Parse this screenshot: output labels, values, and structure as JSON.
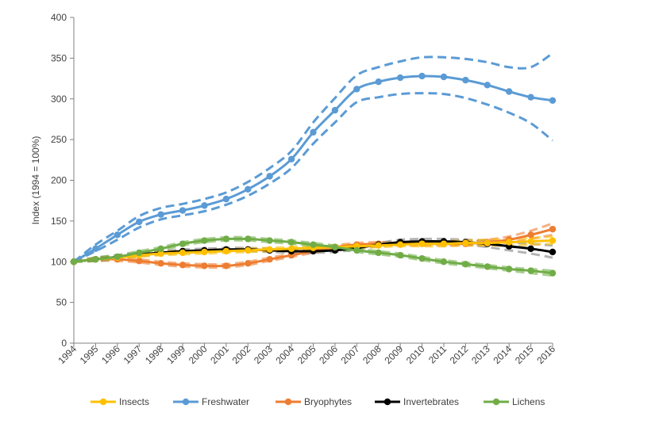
{
  "chart_data": {
    "type": "line",
    "title": "",
    "xlabel": "",
    "ylabel": "Index (1994 = 100%)",
    "ylim": [
      0,
      400
    ],
    "yticks": [
      0,
      50,
      100,
      150,
      200,
      250,
      300,
      350,
      400
    ],
    "x": [
      "1994",
      "1995",
      "1996",
      "1997",
      "1998",
      "1999",
      "2000",
      "2001",
      "2002",
      "2003",
      "2004",
      "2005",
      "2006",
      "2007",
      "2008",
      "2009",
      "2010",
      "2011",
      "2012",
      "2013",
      "2014",
      "2015",
      "2016"
    ],
    "grid": false,
    "legend_position": "bottom",
    "series": [
      {
        "name": "Insects",
        "color": "#FFC000",
        "values": [
          100,
          103,
          105,
          108,
          110,
          111,
          112,
          113,
          114,
          115,
          116,
          117,
          118,
          119,
          120,
          121,
          122,
          122,
          123,
          123,
          124,
          125,
          126
        ],
        "ci_lower": [
          100,
          102,
          104,
          106,
          108,
          109,
          110,
          111,
          112,
          113,
          114,
          115,
          116,
          117,
          118,
          119,
          119,
          119,
          120,
          120,
          120,
          121,
          122
        ],
        "ci_upper": [
          100,
          104,
          107,
          110,
          112,
          113,
          114,
          115,
          116,
          117,
          118,
          119,
          120,
          121,
          122,
          123,
          124,
          125,
          126,
          127,
          128,
          129,
          131
        ]
      },
      {
        "name": "Freshwater",
        "color": "#5B9BD5",
        "values": [
          100,
          116,
          133,
          149,
          158,
          163,
          169,
          177,
          189,
          205,
          226,
          259,
          286,
          312,
          321,
          326,
          328,
          327,
          323,
          317,
          309,
          302,
          298
        ],
        "ci_lower": [
          100,
          113,
          127,
          142,
          152,
          157,
          162,
          170,
          181,
          196,
          215,
          245,
          271,
          296,
          302,
          306,
          307,
          306,
          301,
          293,
          283,
          270,
          249
        ],
        "ci_upper": [
          100,
          121,
          138,
          156,
          166,
          171,
          177,
          185,
          198,
          215,
          236,
          271,
          301,
          329,
          339,
          346,
          351,
          351,
          349,
          345,
          339,
          339,
          356
        ]
      },
      {
        "name": "Bryophytes",
        "color": "#ED7D31",
        "values": [
          100,
          103,
          103,
          101,
          98,
          96,
          95,
          95,
          98,
          103,
          108,
          113,
          118,
          121,
          122,
          122,
          122,
          122,
          122,
          124,
          127,
          133,
          140
        ],
        "ci_lower": [
          100,
          101,
          101,
          99,
          96,
          94,
          93,
          93,
          96,
          101,
          106,
          111,
          116,
          119,
          120,
          120,
          120,
          120,
          120,
          121,
          124,
          128,
          133
        ],
        "ci_upper": [
          100,
          105,
          105,
          103,
          100,
          98,
          97,
          97,
          100,
          105,
          110,
          115,
          120,
          123,
          124,
          124,
          124,
          124,
          124,
          127,
          131,
          138,
          147
        ]
      },
      {
        "name": "Invertebrates",
        "color": "#000000",
        "values": [
          100,
          103,
          106,
          109,
          111,
          113,
          114,
          115,
          115,
          114,
          113,
          113,
          114,
          117,
          121,
          124,
          125,
          125,
          124,
          122,
          119,
          116,
          112
        ],
        "ci_lower": [
          100,
          101,
          104,
          107,
          109,
          111,
          112,
          113,
          113,
          112,
          111,
          111,
          112,
          115,
          119,
          121,
          122,
          122,
          121,
          118,
          114,
          110,
          105
        ],
        "ci_upper": [
          100,
          105,
          108,
          111,
          113,
          115,
          116,
          117,
          117,
          116,
          115,
          115,
          116,
          119,
          123,
          127,
          128,
          128,
          127,
          126,
          124,
          122,
          120
        ]
      },
      {
        "name": "Lichens",
        "color": "#70AD47",
        "values": [
          100,
          103,
          106,
          111,
          116,
          122,
          126,
          128,
          128,
          126,
          124,
          121,
          118,
          114,
          111,
          108,
          104,
          100,
          97,
          94,
          91,
          89,
          86
        ],
        "ci_lower": [
          100,
          101,
          104,
          109,
          114,
          120,
          124,
          126,
          126,
          124,
          122,
          119,
          116,
          112,
          109,
          106,
          102,
          98,
          95,
          92,
          89,
          86,
          83
        ],
        "ci_upper": [
          100,
          105,
          108,
          113,
          118,
          124,
          128,
          130,
          130,
          128,
          126,
          123,
          120,
          116,
          113,
          110,
          106,
          102,
          99,
          96,
          93,
          91,
          89
        ]
      }
    ]
  }
}
